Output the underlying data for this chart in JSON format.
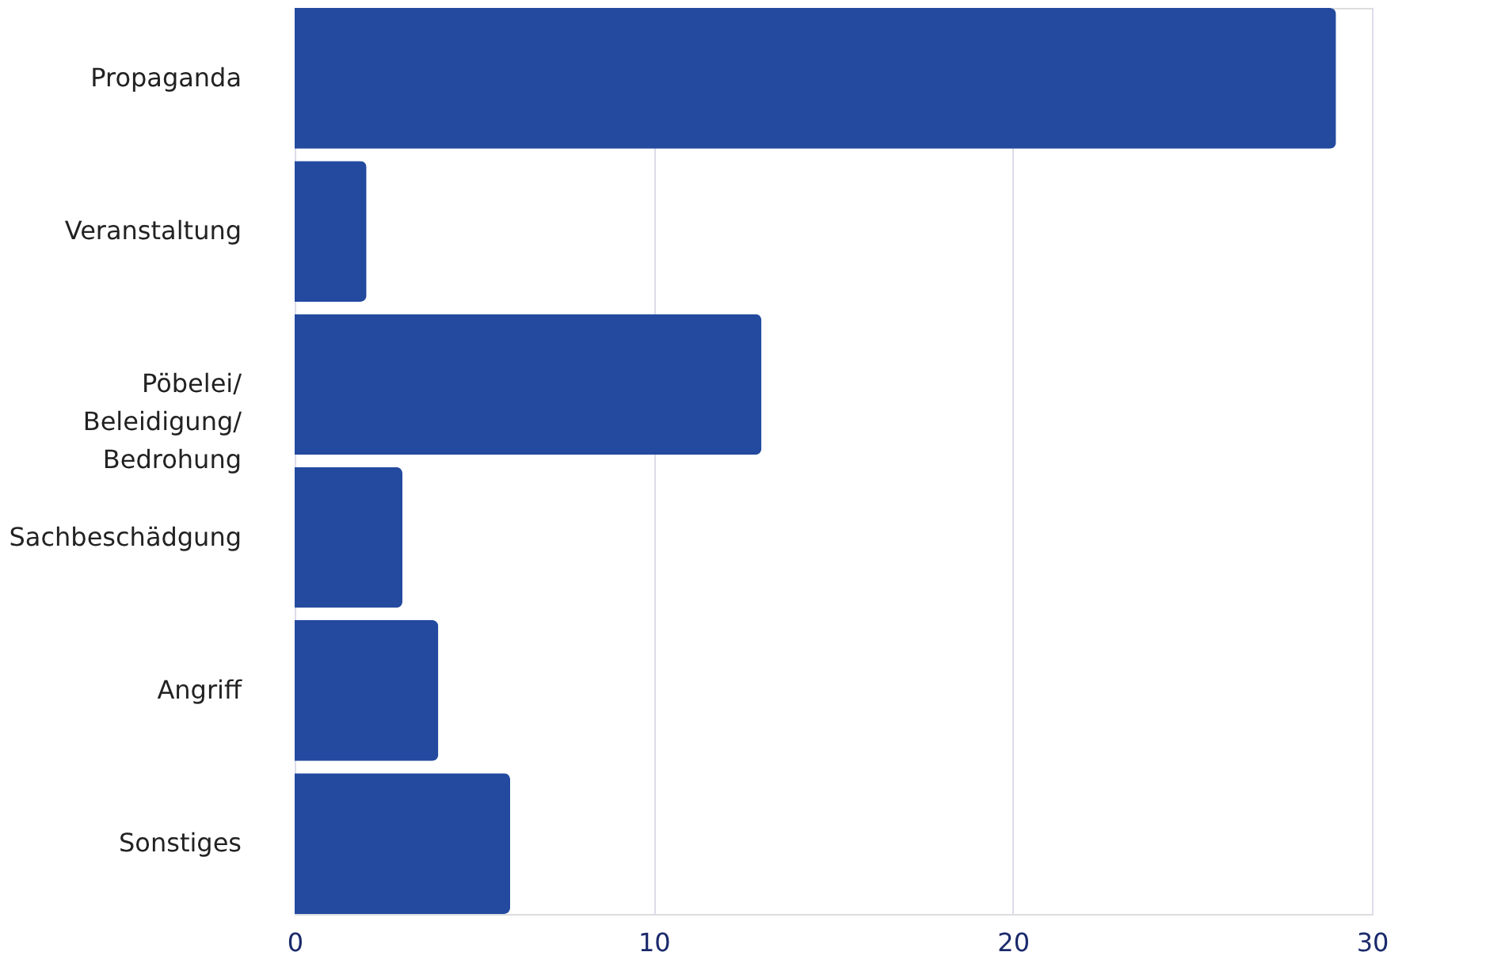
{
  "chart_data": {
    "type": "bar",
    "orientation": "horizontal",
    "categories": [
      "Propaganda",
      "Veranstaltung",
      "Pöbelei/\nBeleidigung/\nBedrohung",
      "Sachbeschädgung",
      "Angriff",
      "Sonstiges"
    ],
    "values": [
      29,
      2,
      13,
      3,
      4,
      6
    ],
    "color": "#234a9f",
    "xlim": [
      0,
      30
    ],
    "xticks": [
      0,
      10,
      20,
      30
    ],
    "grid": "x"
  }
}
